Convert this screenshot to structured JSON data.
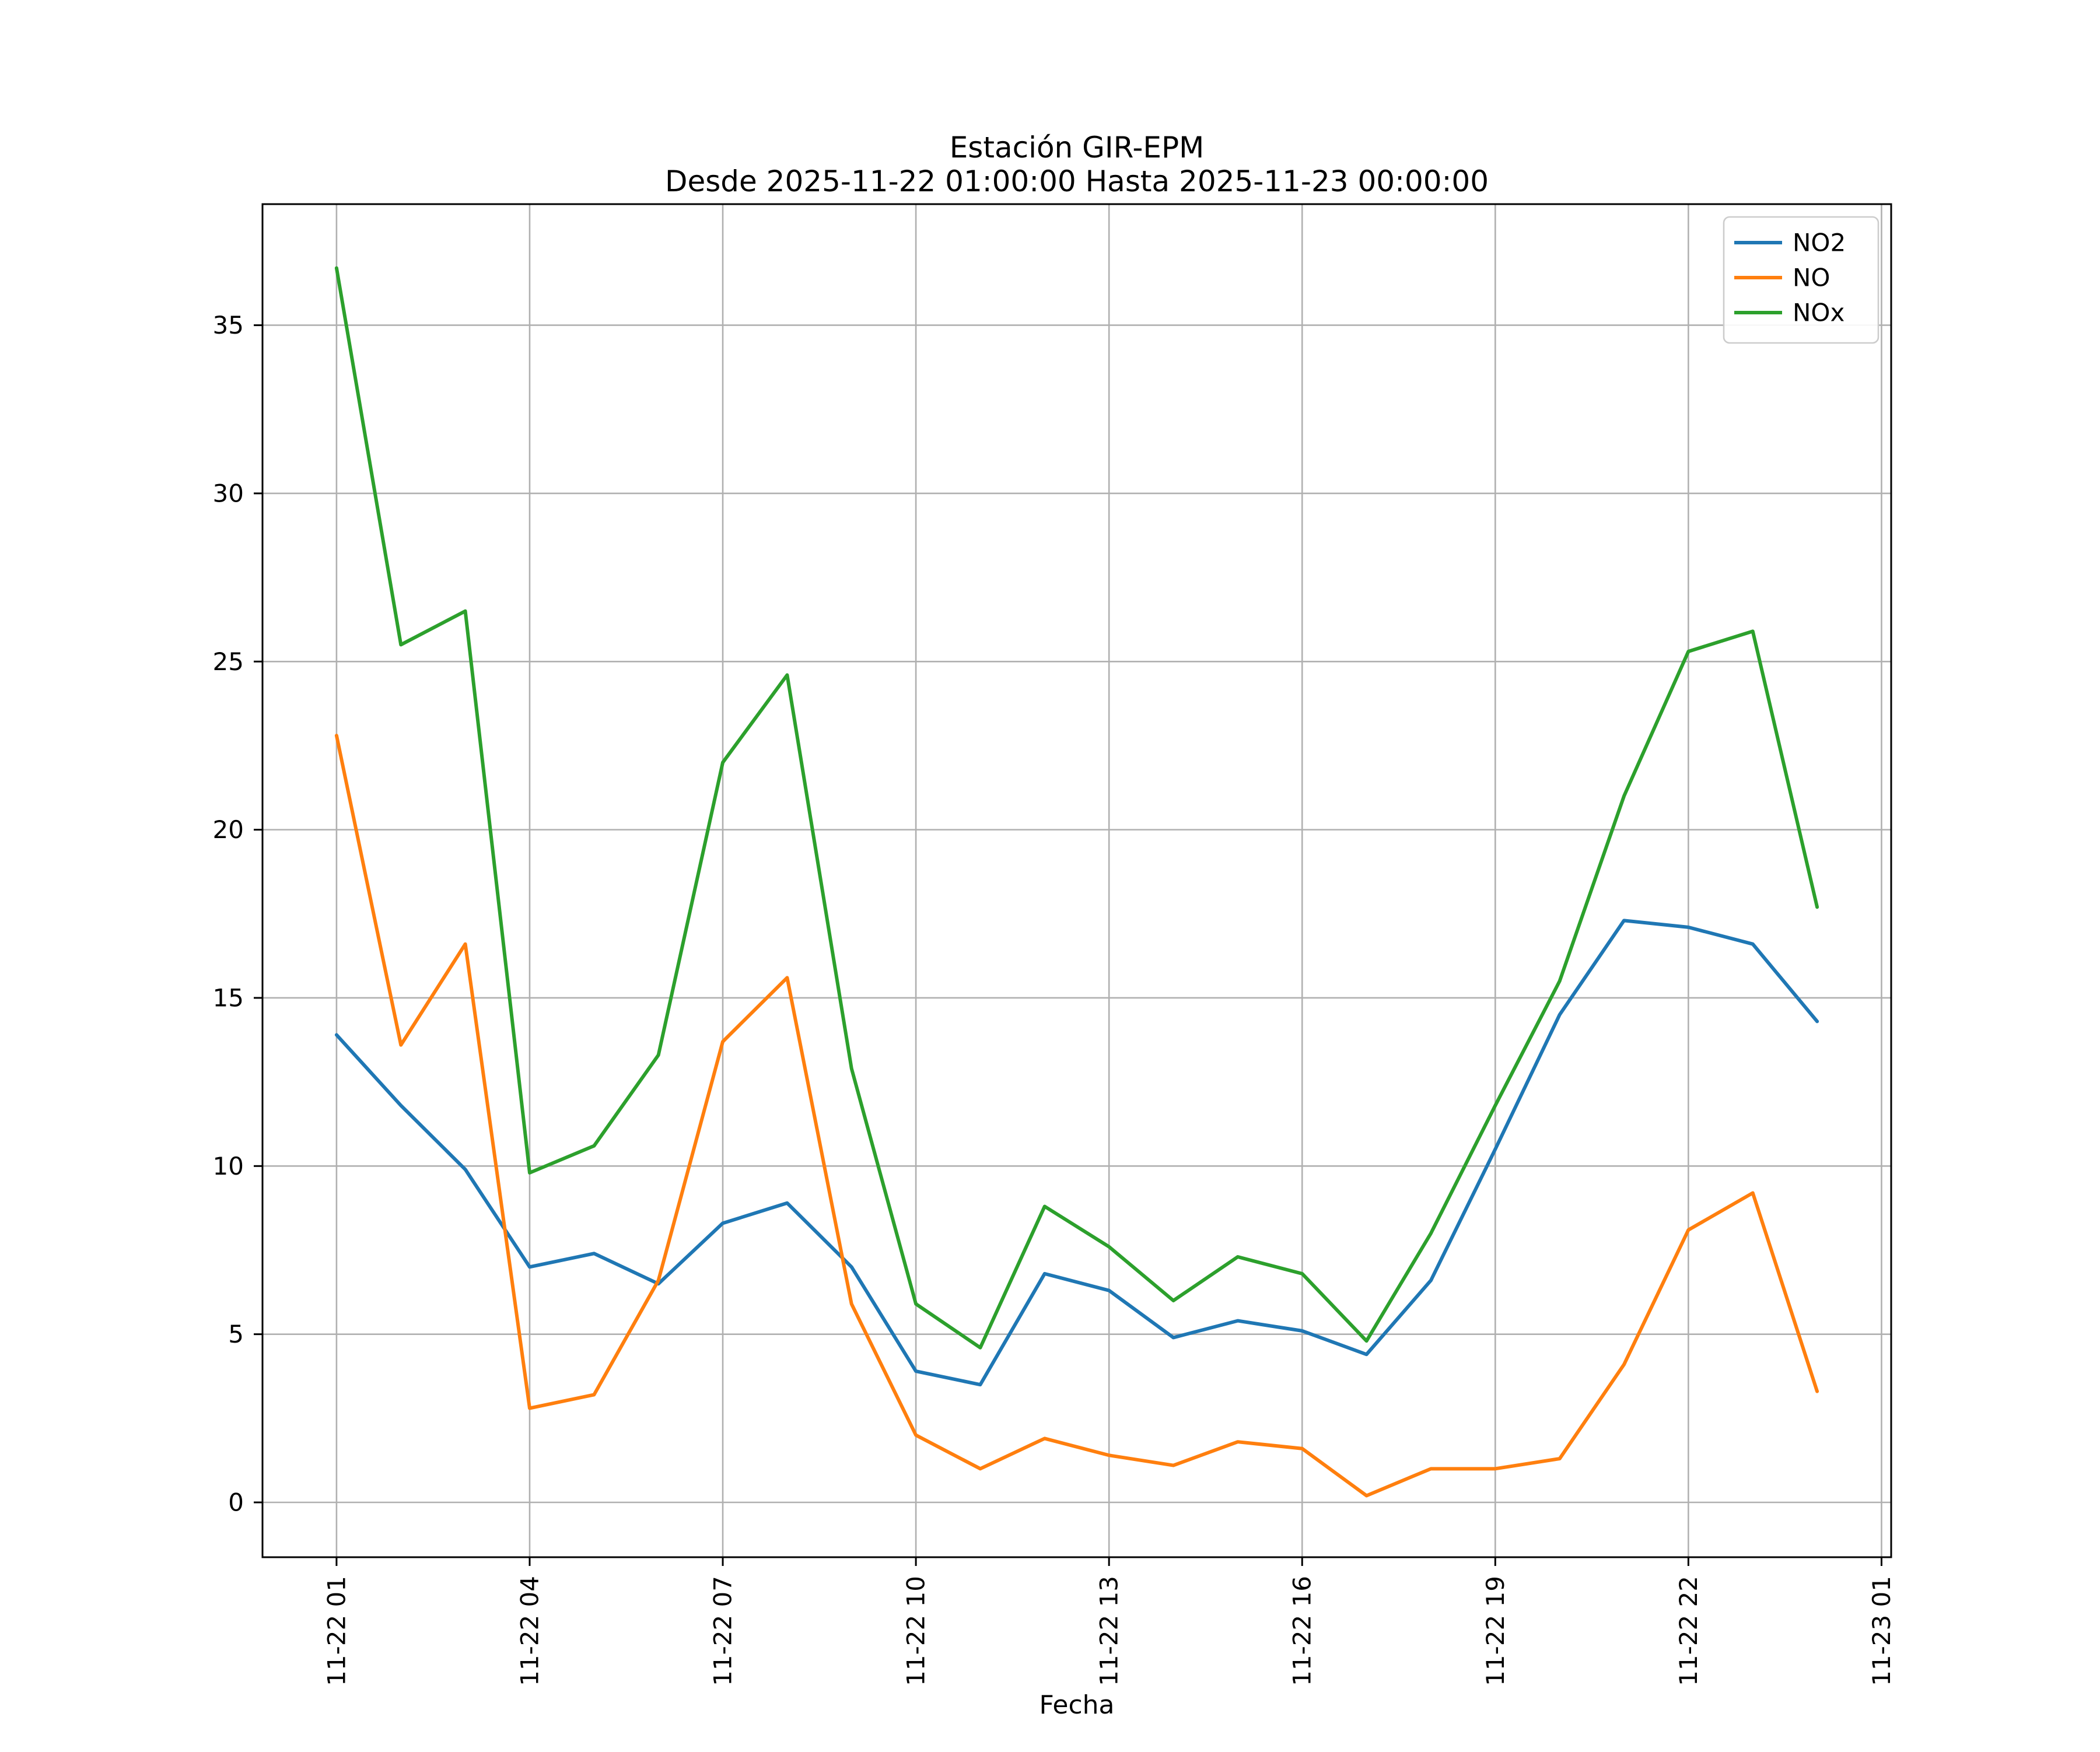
{
  "figure_title": {
    "line1": "Estación GIR-EPM",
    "line2": "Desde 2025-11-22 01:00:00 Hasta 2025-11-23 00:00:00"
  },
  "chart_data": {
    "type": "line",
    "title": "Estación GIR-EPM\nDesde 2025-11-22 01:00:00 Hasta 2025-11-23 00:00:00",
    "title_line1": "Estación GIR-EPM",
    "title_line2": "Desde 2025-11-22 01:00:00 Hasta 2025-11-23 00:00:00",
    "xlabel": "Fecha",
    "ylabel": "",
    "grid": true,
    "legend_position": "upper right",
    "xlim": [
      -0.15,
      25.15
    ],
    "ylim": [
      -1.63,
      38.6
    ],
    "x": [
      1,
      2,
      3,
      4,
      5,
      6,
      7,
      8,
      9,
      10,
      11,
      12,
      13,
      14,
      15,
      16,
      17,
      18,
      19,
      20,
      21,
      22,
      23,
      24
    ],
    "x_tick_positions": [
      1,
      4,
      7,
      10,
      13,
      16,
      19,
      22,
      25
    ],
    "x_tick_labels": [
      "11-22 01",
      "11-22 04",
      "11-22 07",
      "11-22 10",
      "11-22 13",
      "11-22 16",
      "11-22 19",
      "11-22 22",
      "11-23 01"
    ],
    "y_ticks": [
      0,
      5,
      10,
      15,
      20,
      25,
      30,
      35
    ],
    "series": [
      {
        "name": "NO2",
        "color": "#1f77b4",
        "values": [
          13.9,
          11.8,
          9.9,
          7.0,
          7.4,
          6.5,
          8.3,
          8.9,
          7.0,
          3.9,
          3.5,
          6.8,
          6.3,
          4.9,
          5.4,
          5.1,
          4.4,
          6.6,
          10.5,
          14.5,
          17.3,
          17.1,
          16.6,
          14.3
        ]
      },
      {
        "name": "NO",
        "color": "#ff7f0e",
        "values": [
          22.8,
          13.6,
          16.6,
          2.8,
          3.2,
          6.6,
          13.7,
          15.6,
          5.9,
          2.0,
          1.0,
          1.9,
          1.4,
          1.1,
          1.8,
          1.6,
          0.2,
          1.0,
          1.0,
          1.3,
          4.1,
          8.1,
          9.2,
          3.3
        ]
      },
      {
        "name": "NOx",
        "color": "#2ca02c",
        "values": [
          36.7,
          25.5,
          26.5,
          9.8,
          10.6,
          13.3,
          22.0,
          24.6,
          12.9,
          5.9,
          4.6,
          8.8,
          7.6,
          6.0,
          7.3,
          6.8,
          4.8,
          8.0,
          11.8,
          15.5,
          21.0,
          25.3,
          25.9,
          17.7
        ]
      }
    ],
    "grid_color": "#b0b0b0",
    "spine_color": "#000000",
    "background_color": "#ffffff"
  }
}
